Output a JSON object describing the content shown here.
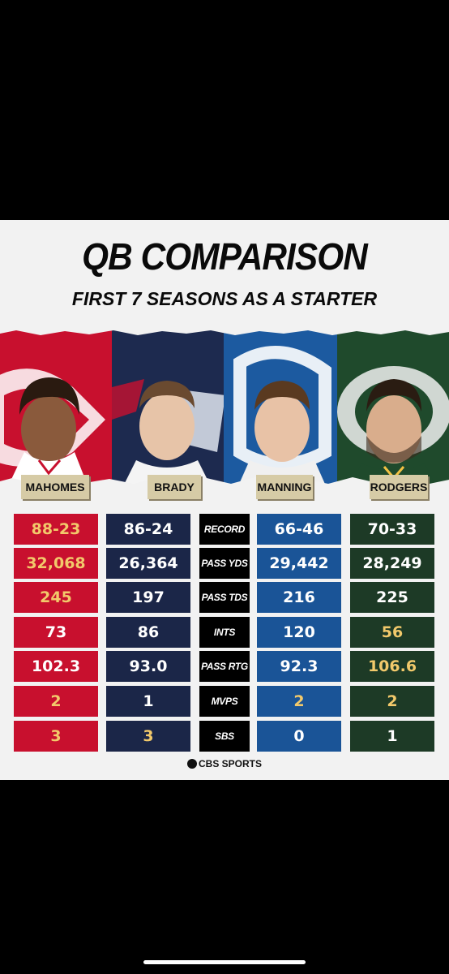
{
  "title": "QB COMPARISON",
  "subtitle": "FIRST 7 SEASONS AS A STARTER",
  "players": [
    "MAHOMES",
    "BRADY",
    "MANNING",
    "RODGERS"
  ],
  "rows": [
    {
      "label": "RECORD",
      "v": [
        "88-23",
        "86-24",
        "66-46",
        "70-33"
      ],
      "best": [
        0
      ]
    },
    {
      "label": "PASS YDS",
      "v": [
        "32,068",
        "26,364",
        "29,442",
        "28,249"
      ],
      "best": [
        0
      ]
    },
    {
      "label": "PASS TDS",
      "v": [
        "245",
        "197",
        "216",
        "225"
      ],
      "best": [
        0
      ]
    },
    {
      "label": "INTS",
      "v": [
        "73",
        "86",
        "120",
        "56"
      ],
      "best": [
        3
      ]
    },
    {
      "label": "PASS RTG",
      "v": [
        "102.3",
        "93.0",
        "92.3",
        "106.6"
      ],
      "best": [
        3
      ]
    },
    {
      "label": "MVPS",
      "v": [
        "2",
        "1",
        "2",
        "2"
      ],
      "best": [
        0,
        2,
        3
      ]
    },
    {
      "label": "SBS",
      "v": [
        "3",
        "3",
        "0",
        "1"
      ],
      "best": [
        0,
        1
      ]
    }
  ],
  "footer": "CBS SPORTS",
  "colors": {
    "chiefs": "#c8102e",
    "patriots": "#1b2648",
    "colts": "#1a5497",
    "packers": "#1d3a26",
    "highlight": "#f2c96b"
  }
}
